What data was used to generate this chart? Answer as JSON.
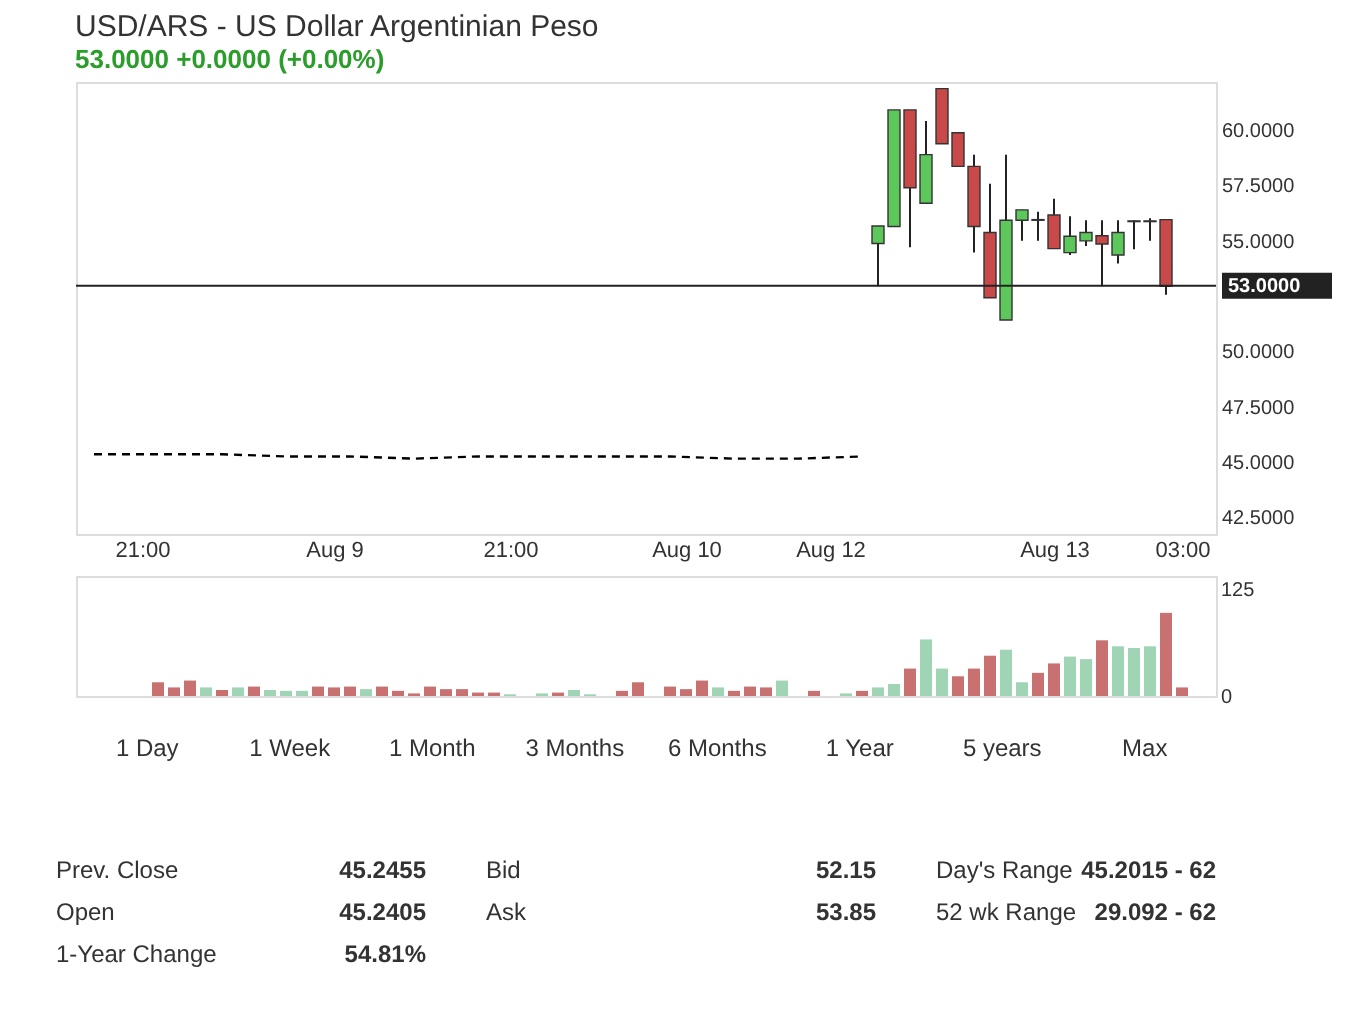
{
  "chart_data": [
    {
      "type": "candlestick",
      "title": "USD/ARS - US Dollar Argentinian Peso",
      "subtitle": "53.0000 +0.0000 (+0.00%)",
      "categories": [
        null,
        null,
        null,
        "21:00",
        null,
        null,
        null,
        null,
        null,
        null,
        null,
        null,
        null,
        null,
        null,
        "Aug 9",
        null,
        null,
        null,
        null,
        null,
        null,
        null,
        null,
        null,
        null,
        "21:00",
        null,
        null,
        null,
        null,
        null,
        null,
        null,
        null,
        null,
        null,
        "Aug 10",
        null,
        null,
        null,
        null,
        null,
        null,
        null,
        null,
        "Aug 12",
        null,
        null,
        null,
        null,
        null,
        null,
        null,
        null,
        null,
        null,
        null,
        null,
        null,
        "Aug 13",
        null,
        null,
        null,
        null,
        null,
        null,
        null,
        "03:00",
        null
      ],
      "ylim": [
        41.8,
        62.2
      ],
      "yticks": [
        {
          "value": 42.5,
          "label": "42.5000"
        },
        {
          "value": 45,
          "label": "45.0000"
        },
        {
          "value": 47.5,
          "label": "47.5000"
        },
        {
          "value": 50,
          "label": "50.0000"
        },
        {
          "value": 55,
          "label": "55.0000"
        },
        {
          "value": 57.5,
          "label": "57.5000"
        },
        {
          "value": 60,
          "label": "60.0000"
        }
      ],
      "grid": false,
      "ref_lines": [
        {
          "axis": "y",
          "value": 53,
          "label": "53.0000",
          "color": "#222222",
          "line_style": "solid"
        }
      ],
      "ohlc": [
        null,
        null,
        null,
        null,
        null,
        null,
        null,
        null,
        null,
        null,
        null,
        null,
        null,
        null,
        null,
        null,
        null,
        null,
        null,
        null,
        null,
        null,
        null,
        null,
        null,
        null,
        null,
        null,
        null,
        null,
        null,
        null,
        null,
        null,
        null,
        null,
        null,
        null,
        null,
        null,
        null,
        null,
        null,
        null,
        null,
        null,
        null,
        null,
        null,
        [
          54.91,
          55.7,
          52.98,
          55.7
        ],
        [
          55.68,
          60.94,
          55.68,
          60.94
        ],
        [
          60.94,
          60.94,
          54.74,
          57.43
        ],
        [
          56.73,
          60.44,
          56.73,
          58.92
        ],
        [
          61.9,
          61.9,
          59.41,
          59.41
        ],
        [
          59.91,
          59.91,
          58.39,
          58.39
        ],
        [
          58.39,
          58.92,
          54.5,
          55.68
        ],
        [
          55.41,
          57.61,
          52.46,
          52.46
        ],
        [
          51.46,
          58.92,
          51.46,
          55.96
        ],
        [
          55.96,
          56.43,
          55.03,
          56.43
        ],
        [
          55.99,
          56.34,
          55.03,
          55.96
        ],
        [
          56.2,
          56.93,
          54.68,
          54.68
        ],
        [
          54.5,
          56.14,
          54.39,
          55.24
        ],
        [
          55.03,
          55.96,
          54.8,
          55.41
        ],
        [
          55.26,
          55.96,
          52.98,
          54.89
        ],
        [
          54.39,
          55.96,
          54.01,
          55.41
        ],
        [
          55.93,
          55.96,
          54.65,
          55.9
        ],
        [
          55.93,
          56.05,
          55.03,
          55.9
        ],
        [
          55.99,
          55.99,
          52.6,
          52.98
        ],
        null,
        null
      ],
      "series": [
        {
          "type": "line",
          "color": "#000000",
          "line_style": "dashed",
          "values": [
            45.4,
            null,
            null,
            null,
            45.4,
            null,
            null,
            null,
            45.4,
            null,
            null,
            null,
            45.3,
            null,
            null,
            null,
            45.3,
            null,
            null,
            null,
            45.2,
            null,
            null,
            null,
            45.3,
            null,
            null,
            null,
            45.3,
            null,
            null,
            null,
            45.3,
            null,
            null,
            null,
            45.3,
            null,
            null,
            null,
            45.2,
            null,
            null,
            null,
            45.2,
            null,
            null,
            null,
            45.3,
            null,
            null,
            null,
            null,
            null,
            null,
            null,
            null,
            null,
            null,
            null,
            null,
            null,
            null,
            null,
            null,
            null,
            null,
            null,
            null,
            null
          ]
        }
      ]
    },
    {
      "type": "bar",
      "tick_labels": "y",
      "grid": false,
      "categories": [
        null,
        null,
        null,
        null,
        null,
        null,
        null,
        null,
        null,
        null,
        null,
        null,
        null,
        null,
        null,
        null,
        null,
        null,
        null,
        null,
        null,
        null,
        null,
        null,
        null,
        null,
        null,
        null,
        null,
        null,
        null,
        null,
        null,
        null,
        null,
        null,
        null,
        null,
        null,
        null,
        null,
        null,
        null,
        null,
        null,
        null,
        null,
        null,
        null,
        null,
        null,
        null,
        null,
        null,
        null,
        null,
        null,
        null,
        null,
        null,
        null,
        null,
        null,
        null,
        null,
        null,
        null,
        null,
        null,
        null
      ],
      "ylim": [
        0,
        140
      ],
      "yticks": [
        0,
        125
      ],
      "values": [
        null,
        null,
        null,
        null,
        16,
        10,
        18,
        10,
        7,
        10,
        11,
        7,
        6,
        6,
        11,
        10,
        11,
        8,
        11,
        6,
        3,
        11,
        8,
        8,
        4,
        4,
        2,
        null,
        3,
        4,
        7,
        2,
        null,
        6,
        16,
        null,
        11,
        8,
        18,
        10,
        6,
        11,
        10,
        18,
        null,
        6,
        null,
        3,
        6,
        10,
        14,
        32,
        66,
        32,
        23,
        32,
        47,
        54,
        16,
        27,
        38,
        46,
        43,
        65,
        58,
        56,
        58,
        97,
        10,
        null
      ],
      "colors": [
        null,
        null,
        null,
        null,
        "#c97070",
        "#c97070",
        "#c97070",
        "#9fd4b4",
        "#c97070",
        "#9fd4b4",
        "#c97070",
        "#9fd4b4",
        "#9fd4b4",
        "#9fd4b4",
        "#c97070",
        "#c97070",
        "#c97070",
        "#9fd4b4",
        "#c97070",
        "#c97070",
        "#c97070",
        "#c97070",
        "#c97070",
        "#c97070",
        "#c97070",
        "#c97070",
        "#9fd4b4",
        null,
        "#9fd4b4",
        "#c97070",
        "#9fd4b4",
        "#9fd4b4",
        null,
        "#c97070",
        "#c97070",
        null,
        "#c97070",
        "#c97070",
        "#c97070",
        "#9fd4b4",
        "#c97070",
        "#c97070",
        "#c97070",
        "#9fd4b4",
        null,
        "#c97070",
        null,
        "#9fd4b4",
        "#c97070",
        "#9fd4b4",
        "#9fd4b4",
        "#c97070",
        "#9fd4b4",
        "#9fd4b4",
        "#c97070",
        "#c97070",
        "#c97070",
        "#9fd4b4",
        "#9fd4b4",
        "#c97070",
        "#c97070",
        "#9fd4b4",
        "#9fd4b4",
        "#c97070",
        "#9fd4b4",
        "#9fd4b4",
        "#9fd4b4",
        "#c97070",
        "#c97070",
        null
      ],
      "annotations": [
        "1 Day",
        "1 Week",
        "1 Month",
        "3 Months",
        "6 Months",
        "1 Year",
        "5 years",
        "Max",
        "Prev. Close",
        "45.2455",
        "Bid",
        "52.15",
        "Day's Range",
        "45.2015 - 62",
        "Open",
        "45.2405",
        "Ask",
        "53.85",
        "52 wk Range",
        "29.092 - 62",
        "1-Year Change",
        "54.81%"
      ]
    }
  ]
}
